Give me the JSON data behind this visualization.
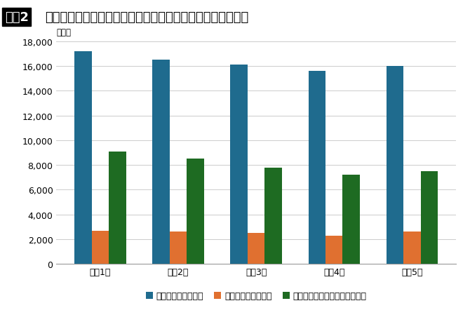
{
  "title_box": "図袅2",
  "title_main": "ストーカー事案の加害者「性別・被害者との関係」（件数）",
  "title_unit": "（件）",
  "categories": [
    "令和1年",
    "令和2年",
    "令和3年",
    "令和4年",
    "令和5年"
  ],
  "series": {
    "male": [
      17200,
      16500,
      16100,
      15600,
      16000
    ],
    "female": [
      2700,
      2600,
      2500,
      2300,
      2600
    ],
    "dating": [
      9100,
      8500,
      7800,
      7200,
      7500
    ]
  },
  "colors": {
    "male": "#1F6B8E",
    "female": "#E07030",
    "dating": "#1E6B22"
  },
  "legend_labels": {
    "male": "加害者の性別・男性",
    "female": "加害者の性別・女性",
    "dating": "加害者が交際相手（元を含む）"
  },
  "ylim": [
    0,
    18000
  ],
  "yticks": [
    0,
    2000,
    4000,
    6000,
    8000,
    10000,
    12000,
    14000,
    16000,
    18000
  ],
  "background_color": "#FFFFFF",
  "grid_color": "#CCCCCC",
  "bar_width": 0.22,
  "axis_fontsize": 9,
  "legend_fontsize": 9,
  "title_fontsize": 13
}
